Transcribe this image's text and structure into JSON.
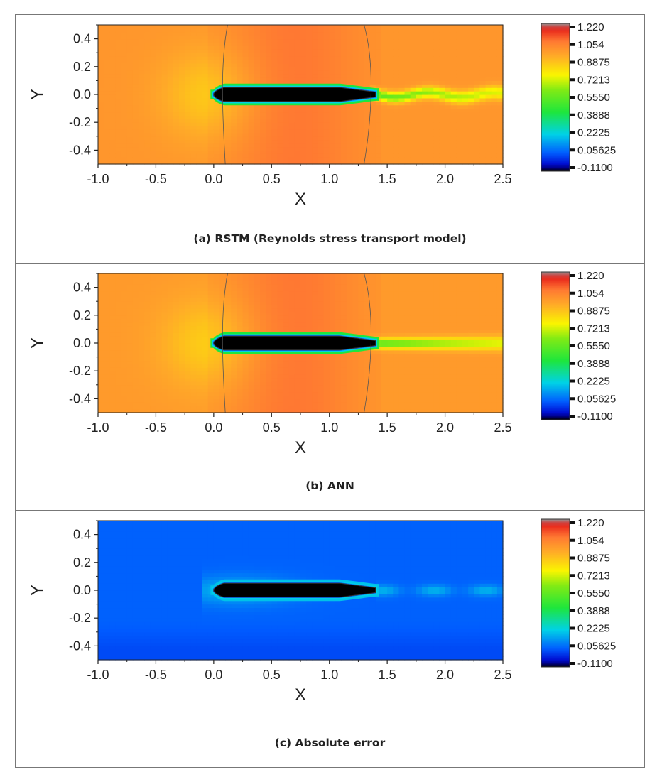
{
  "chart_data": [
    {
      "type": "heatmap",
      "panel": "a",
      "caption": "(a)  RSTM (Reynolds stress transport model)",
      "xlabel": "X",
      "ylabel": "Y",
      "xlim": [
        -1.0,
        2.5
      ],
      "ylim": [
        -0.5,
        0.5
      ],
      "xticks": [
        "-1.0",
        "-0.5",
        "0.0",
        "0.5",
        "1.0",
        "1.5",
        "2.0",
        "2.5"
      ],
      "yticks": [
        "0.4",
        "0.2",
        "0.0",
        "-0.2",
        "-0.4"
      ],
      "colorbar": {
        "min": -0.11,
        "max": 1.22,
        "labels": [
          "1.220",
          "1.054",
          "0.8875",
          "0.7213",
          "0.5550",
          "0.3888",
          "0.2225",
          "0.05625",
          "-0.1100"
        ]
      },
      "body": {
        "x_start": 0.0,
        "x_end": 1.4,
        "half_thickness": 0.05
      },
      "field": {
        "freestream": 0.98,
        "body_side": 1.06,
        "wake": "oscillating"
      }
    },
    {
      "type": "heatmap",
      "panel": "b",
      "caption": "(b)  ANN",
      "xlabel": "X",
      "ylabel": "Y",
      "xlim": [
        -1.0,
        2.5
      ],
      "ylim": [
        -0.5,
        0.5
      ],
      "xticks": [
        "-1.0",
        "-0.5",
        "0.0",
        "0.5",
        "1.0",
        "1.5",
        "2.0",
        "2.5"
      ],
      "yticks": [
        "0.4",
        "0.2",
        "0.0",
        "-0.2",
        "-0.4"
      ],
      "colorbar": {
        "min": -0.11,
        "max": 1.22,
        "labels": [
          "1.220",
          "1.054",
          "0.8875",
          "0.7213",
          "0.5550",
          "0.3888",
          "0.2225",
          "0.05625",
          "-0.1100"
        ]
      },
      "body": {
        "x_start": 0.0,
        "x_end": 1.4,
        "half_thickness": 0.05
      },
      "field": {
        "freestream": 0.97,
        "body_side": 1.06,
        "wake": "straight"
      }
    },
    {
      "type": "heatmap",
      "panel": "c",
      "caption": "(c)  Absolute error",
      "xlabel": "X",
      "ylabel": "Y",
      "xlim": [
        -1.0,
        2.5
      ],
      "ylim": [
        -0.5,
        0.5
      ],
      "xticks": [
        "-1.0",
        "-0.5",
        "0.0",
        "0.5",
        "1.0",
        "1.5",
        "2.0",
        "2.5"
      ],
      "yticks": [
        "0.4",
        "0.2",
        "0.0",
        "-0.2",
        "-0.4"
      ],
      "colorbar": {
        "min": -0.11,
        "max": 1.22,
        "labels": [
          "1.220",
          "1.054",
          "0.8875",
          "0.7213",
          "0.5550",
          "0.3888",
          "0.2225",
          "0.05625",
          "-0.1100"
        ]
      },
      "body": {
        "x_start": 0.0,
        "x_end": 1.4,
        "half_thickness": 0.05
      },
      "field": {
        "freestream": 0.06,
        "near_body": 0.2,
        "wake": "patchy"
      }
    }
  ]
}
